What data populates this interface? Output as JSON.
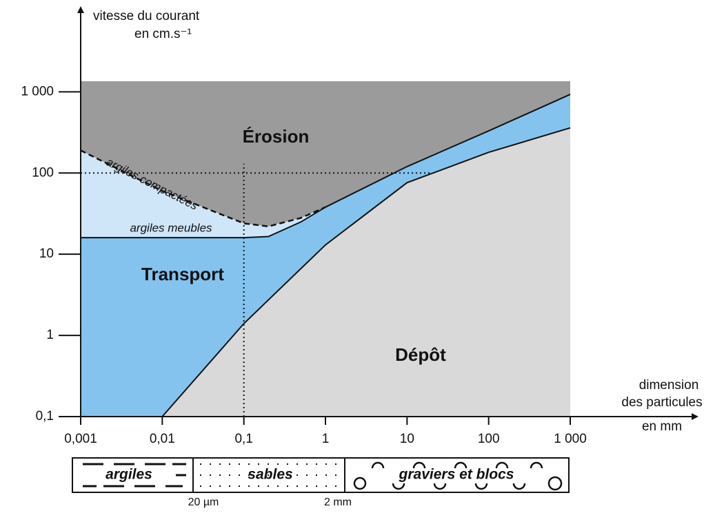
{
  "chart_data": {
    "type": "area",
    "log_x": true,
    "log_y": true,
    "y_label": [
      "vitesse du courant",
      "en cm.s⁻¹"
    ],
    "x_label": [
      "dimension",
      "des particules"
    ],
    "x_unit": "en mm",
    "xlim": [
      0.001,
      1000
    ],
    "ylim": [
      0.1,
      1350
    ],
    "xticks": [
      {
        "value": 0.001,
        "label": "0,001"
      },
      {
        "value": 0.01,
        "label": "0,01"
      },
      {
        "value": 0.1,
        "label": "0,1"
      },
      1,
      10,
      100,
      {
        "value": 1000,
        "label": "1 000"
      }
    ],
    "yticks": [
      {
        "value": 0.1,
        "label": "0,1"
      },
      1,
      10,
      100,
      {
        "value": 1000,
        "label": "1 000"
      }
    ],
    "regions": [
      {
        "label": "Érosion",
        "color": "#9b9b9b"
      },
      {
        "label": "Transport",
        "color": "#84c3ee"
      },
      {
        "label": "Dépôt",
        "color": "#d9d9d9"
      }
    ],
    "series": [
      {
        "name": "argiles compactées",
        "dashed": true,
        "fill": "#cfe5f8",
        "x": [
          0.001,
          0.01,
          0.1,
          0.2,
          0.5,
          1
        ],
        "values": [
          190,
          60,
          24,
          22,
          28,
          38
        ]
      },
      {
        "name": "argiles meubles",
        "x": [
          0.001,
          0.1,
          0.2,
          0.5,
          1
        ],
        "values": [
          16,
          16,
          16.5,
          25,
          38
        ]
      },
      {
        "x": [
          1,
          10,
          100,
          1000
        ],
        "values": [
          38,
          120,
          330,
          930
        ]
      },
      {
        "x": [
          0.01,
          0.1,
          1,
          10,
          100,
          1000
        ],
        "values": [
          0.1,
          1.4,
          13,
          76,
          180,
          360
        ]
      }
    ],
    "guides": [
      {
        "x": 0.1,
        "y_to": 130
      },
      {
        "y": 100,
        "x_to": 20
      }
    ],
    "scale_bar": {
      "segments": [
        "argiles",
        "sables",
        "graviers et blocs"
      ],
      "limits": [
        "20 µm",
        "2 mm"
      ]
    }
  }
}
